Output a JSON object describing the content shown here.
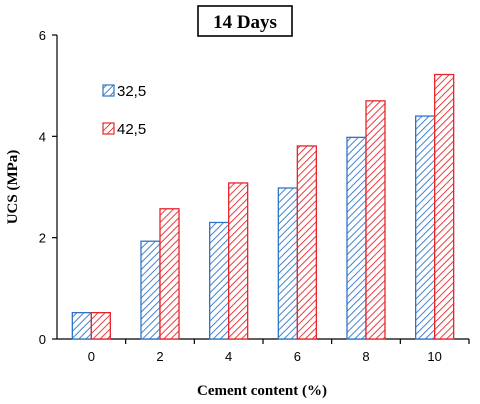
{
  "chart_data": {
    "type": "bar",
    "title": "14 Days",
    "xlabel": "Cement content (%)",
    "ylabel": "UCS  (MPa)",
    "categories": [
      "0",
      "2",
      "4",
      "6",
      "8",
      "10"
    ],
    "ylim": [
      0,
      6
    ],
    "yticks": [
      "0",
      "2",
      "4",
      "6"
    ],
    "grid": false,
    "legend_position": "top-left",
    "series": [
      {
        "name": "32,5",
        "color": "#2e75c8",
        "pattern": "diagonal-hatch",
        "values": [
          0.52,
          1.93,
          2.3,
          2.98,
          3.98,
          4.4
        ]
      },
      {
        "name": "42,5",
        "color": "#e8242b",
        "pattern": "diagonal-hatch",
        "values": [
          0.52,
          2.57,
          3.08,
          3.81,
          4.7,
          5.22
        ]
      }
    ]
  }
}
